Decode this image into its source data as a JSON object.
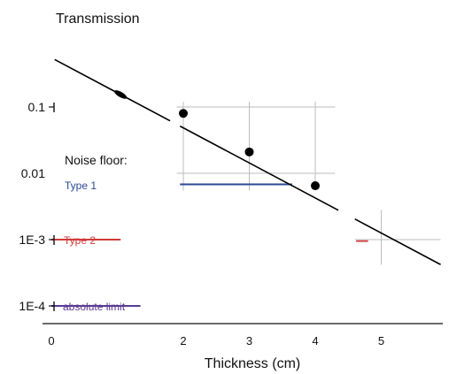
{
  "chart_data": {
    "type": "line",
    "title": "Transmission",
    "xlabel": "Thickness (cm)",
    "ylabel": "",
    "scale_y": "log",
    "xlim": [
      0,
      5.9
    ],
    "ylim": [
      3e-05,
      0.8
    ],
    "x_ticks": [
      {
        "value": 0,
        "label": "0"
      },
      {
        "value": 2,
        "label": "2"
      },
      {
        "value": 3,
        "label": "3"
      },
      {
        "value": 4,
        "label": "4"
      },
      {
        "value": 5,
        "label": "5"
      }
    ],
    "y_ticks": [
      {
        "value": 0.1,
        "label": "0.1"
      },
      {
        "value": 0.01,
        "label": "0.01"
      },
      {
        "value": 0.001,
        "label": "1E-3"
      },
      {
        "value": 0.0001,
        "label": "1E-4"
      }
    ],
    "grid": "partial (x = 2, 3, 4 between 0.1 and 0.01; x = 5 near 1E-3)",
    "series": [
      {
        "name": "",
        "color": "#000000",
        "x": [
          0.05,
          5.9
        ],
        "y": [
          0.52,
          0.00042
        ],
        "markers": [
          {
            "x": 2,
            "y": 0.08
          },
          {
            "x": 3,
            "y": 0.021
          },
          {
            "x": 4,
            "y": 0.0065
          }
        ]
      }
    ],
    "annotations": {
      "noise_floor_label": "Noise floor:",
      "levels": [
        {
          "label": "Type 1",
          "y": 0.0068,
          "x_start": 1.95,
          "x_end": 3.65,
          "color": "#2a4a94"
        },
        {
          "label": "Type 2",
          "y": 0.001,
          "x_start": 0,
          "x_end": 1.05,
          "color": "#d23a3a"
        },
        {
          "label": "absolute limit",
          "y": 0.0001,
          "x_start": 0,
          "x_end": 1.35,
          "color": "#5b3a92"
        }
      ]
    }
  }
}
